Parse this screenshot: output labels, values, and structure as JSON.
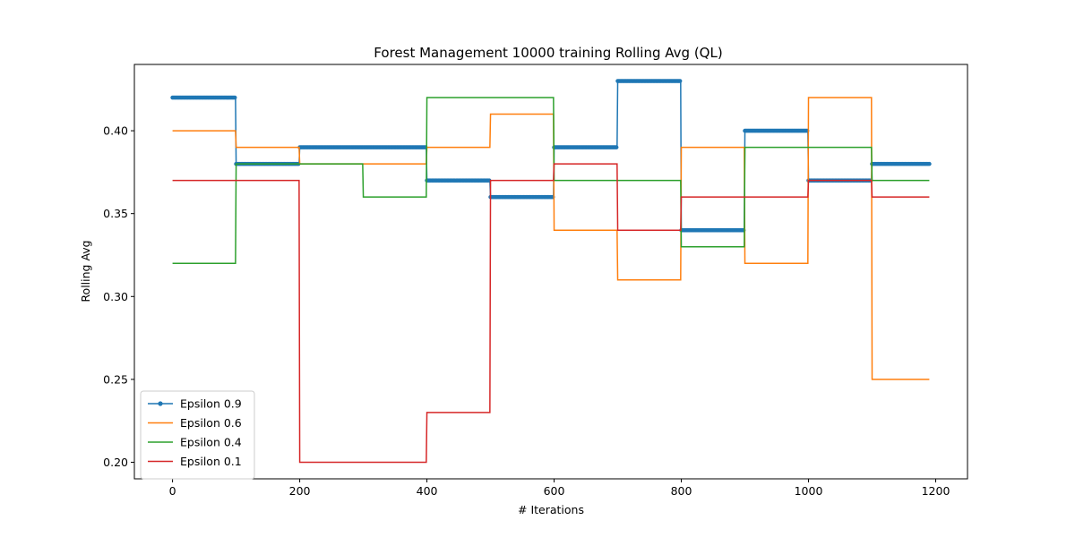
{
  "chart_data": {
    "type": "line",
    "title": "Forest Management 10000 training Rolling Avg (QL)",
    "xlabel": "# Iterations",
    "ylabel": "Rolling Avg",
    "xlim": [
      -60,
      1250
    ],
    "ylim": [
      0.19,
      0.44
    ],
    "xticks": [
      0,
      200,
      400,
      600,
      800,
      1000,
      1200
    ],
    "yticks": [
      0.2,
      0.25,
      0.3,
      0.35,
      0.4
    ],
    "ytick_labels": [
      "0.20",
      "0.25",
      "0.30",
      "0.35",
      "0.40"
    ],
    "legend_position": "lower-left",
    "series": [
      {
        "name": "Epsilon 0.9",
        "color": "#1f77b4",
        "marker": "dot",
        "steps": [
          [
            0,
            0.42
          ],
          [
            100,
            0.38
          ],
          [
            200,
            0.39
          ],
          [
            400,
            0.37
          ],
          [
            500,
            0.36
          ],
          [
            600,
            0.39
          ],
          [
            700,
            0.43
          ],
          [
            800,
            0.34
          ],
          [
            900,
            0.4
          ],
          [
            1000,
            0.37
          ],
          [
            1100,
            0.38
          ]
        ]
      },
      {
        "name": "Epsilon 0.6",
        "color": "#ff7f0e",
        "marker": "none",
        "steps": [
          [
            0,
            0.4
          ],
          [
            100,
            0.39
          ],
          [
            200,
            0.38
          ],
          [
            400,
            0.39
          ],
          [
            500,
            0.41
          ],
          [
            600,
            0.34
          ],
          [
            700,
            0.31
          ],
          [
            800,
            0.39
          ],
          [
            900,
            0.32
          ],
          [
            1000,
            0.42
          ],
          [
            1100,
            0.25
          ]
        ]
      },
      {
        "name": "Epsilon 0.4",
        "color": "#2ca02c",
        "marker": "none",
        "steps": [
          [
            0,
            0.32
          ],
          [
            100,
            0.38
          ],
          [
            300,
            0.36
          ],
          [
            400,
            0.42
          ],
          [
            600,
            0.37
          ],
          [
            800,
            0.33
          ],
          [
            900,
            0.39
          ],
          [
            1100,
            0.37
          ]
        ]
      },
      {
        "name": "Epsilon 0.1",
        "color": "#d62728",
        "marker": "none",
        "steps": [
          [
            0,
            0.37
          ],
          [
            200,
            0.2
          ],
          [
            400,
            0.23
          ],
          [
            500,
            0.37
          ],
          [
            600,
            0.38
          ],
          [
            700,
            0.34
          ],
          [
            800,
            0.36
          ],
          [
            1000,
            0.37
          ],
          [
            1100,
            0.36
          ]
        ]
      }
    ],
    "x_end": 1190
  }
}
